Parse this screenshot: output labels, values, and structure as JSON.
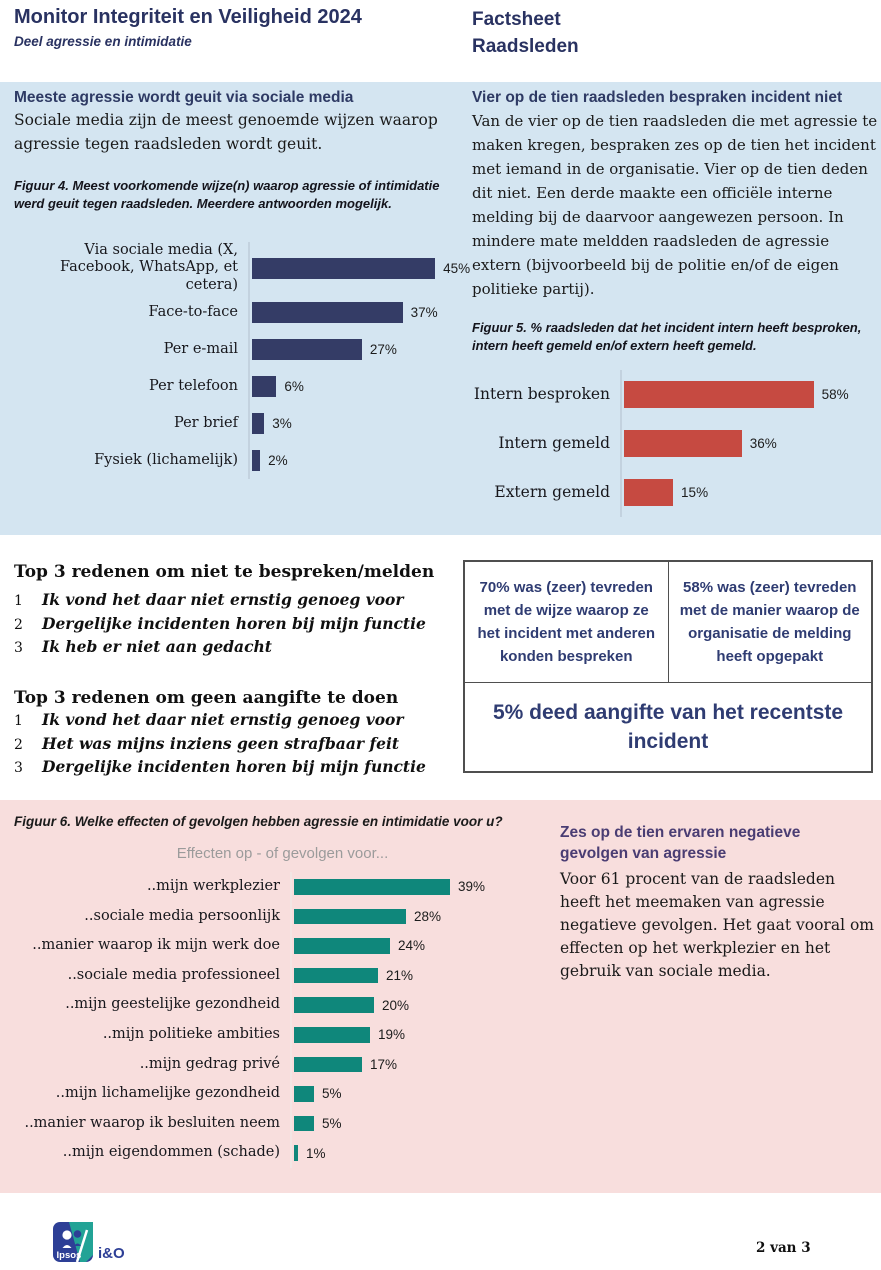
{
  "header": {
    "title": "Monitor Integriteit en Veiligheid 2024",
    "subtitle": "Deel agressie en intimidatie",
    "doc_type_line1": "Factsheet",
    "doc_type_line2": "Raadsleden"
  },
  "blue_section": {
    "left_heading": "Meeste agressie wordt geuit via sociale media",
    "left_body": "Sociale media zijn de meest genoemde wijzen waarop agressie tegen raadsleden wordt geuit.",
    "right_heading": "Vier op de tien raadsleden bespraken incident niet",
    "right_body": "Van de vier op de tien raadsleden die met agressie te maken kregen, bespraken zes op de tien het incident met iemand in de organisatie. Vier op de tien deden dit niet. Een derde maakte een officiële interne melding bij de daarvoor aangewezen persoon. In mindere mate meldden raadsleden de agressie extern (bijvoorbeeld bij de politie en/of de eigen politieke partij)."
  },
  "lists": {
    "list1_title": "Top 3 redenen om niet te bespreken/melden",
    "list1": [
      {
        "num": "1",
        "text": "Ik vond het daar niet ernstig genoeg voor"
      },
      {
        "num": "2",
        "text": "Dergelijke incidenten horen bij mijn functie"
      },
      {
        "num": "3",
        "text": "Ik heb er niet aan gedacht"
      }
    ],
    "list2_title": "Top 3 redenen om geen aangifte te doen",
    "list2": [
      {
        "num": "1",
        "text": "Ik vond het daar niet ernstig genoeg voor"
      },
      {
        "num": "2",
        "text": "Het was mijns inziens geen strafbaar feit"
      },
      {
        "num": "3",
        "text": "Dergelijke incidenten horen bij mijn functie"
      }
    ]
  },
  "stats_box": {
    "cell_top_left": "70% was (zeer) tevreden met de wijze waarop ze het incident met anderen konden bespreken",
    "cell_top_right": "58% was (zeer) tevreden met de manier waarop de organisatie de melding heeft opgepakt",
    "cell_bottom": "5% deed aangifte van het recentste incident"
  },
  "pink_section": {
    "right_heading": "Zes op de tien ervaren negatieve gevolgen van agressie",
    "right_body": "Voor 61 procent van de raadsleden heeft het meemaken van agressie negatieve gevolgen. Het gaat vooral om effecten op het werkplezier en het gebruik van sociale media."
  },
  "footer": {
    "brand": "Ipsos",
    "brand_suffix": "i&O",
    "page_indicator": "2 van 3"
  },
  "colors": {
    "navy_heading": "#2e3a64",
    "bar_navy": "#343c66",
    "bar_red": "#c64a41",
    "bar_teal": "#0f877b",
    "blue_band_bg": "#d4e5f1",
    "pink_band_bg": "#f8dedd",
    "purple_heading": "#4a3d73",
    "stats_text": "#2f3c72",
    "logo_blue": "#2d3f96",
    "logo_teal": "#22a396"
  },
  "chart_data": [
    {
      "id": "figuur4",
      "type": "bar",
      "orientation": "horizontal",
      "caption": "Figuur 4. Meest voorkomende wijze(n) waarop agressie of intimidatie werd geuit tegen raadsleden. Meerdere antwoorden mogelijk.",
      "categories": [
        "Via sociale media (X, Facebook, WhatsApp, et cetera)",
        "Face-to-face",
        "Per e-mail",
        "Per telefoon",
        "Per brief",
        "Fysiek (lichamelijk)"
      ],
      "values": [
        45,
        37,
        27,
        6,
        3,
        2
      ],
      "unit": "%",
      "bar_color": "#343c66",
      "xlim": [
        0,
        50
      ],
      "grid": false,
      "legend": false
    },
    {
      "id": "figuur5",
      "type": "bar",
      "orientation": "horizontal",
      "caption": "Figuur 5. % raadsleden dat het incident intern heeft besproken, intern heeft gemeld en/of extern heeft gemeld.",
      "categories": [
        "Intern besproken",
        "Intern gemeld",
        "Extern gemeld"
      ],
      "values": [
        58,
        36,
        15
      ],
      "unit": "%",
      "bar_color": "#c64a41",
      "xlim": [
        0,
        65
      ],
      "grid": false,
      "legend": false
    },
    {
      "id": "figuur6",
      "type": "bar",
      "orientation": "horizontal",
      "caption": "Figuur 6. Welke effecten of gevolgen hebben agressie en intimidatie voor u?",
      "title": "Effecten op - of gevolgen voor...",
      "categories": [
        "..mijn werkplezier",
        "..sociale media persoonlijk",
        "..manier waarop ik mijn werk doe",
        "..sociale media professioneel",
        "..mijn geestelijke gezondheid",
        "..mijn politieke ambities",
        "..mijn gedrag privé",
        "..mijn lichamelijke gezondheid",
        "..manier waarop ik besluiten neem",
        "..mijn eigendommen (schade)"
      ],
      "values": [
        39,
        28,
        24,
        21,
        20,
        19,
        17,
        5,
        5,
        1
      ],
      "unit": "%",
      "bar_color": "#0f877b",
      "xlim": [
        0,
        45
      ],
      "grid": false,
      "legend": false
    }
  ]
}
